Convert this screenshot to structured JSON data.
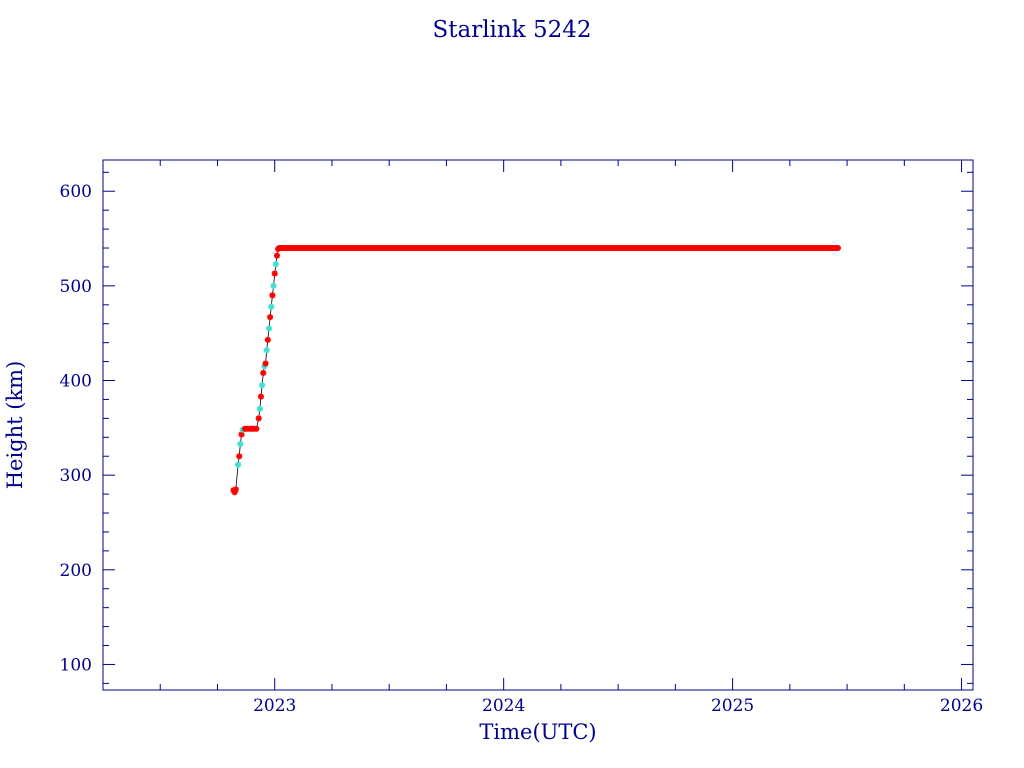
{
  "chart_data": {
    "type": "scatter",
    "title": "Starlink 5242",
    "xlabel": "Time(UTC)",
    "ylabel": "Height (km)",
    "xlim": [
      2022.25,
      2026.05
    ],
    "ylim": [
      73,
      633
    ],
    "x_ticks": [
      2023,
      2024,
      2025,
      2026
    ],
    "y_ticks": [
      100,
      200,
      300,
      400,
      500,
      600
    ],
    "grid": false,
    "colors": {
      "axes": "#00008b",
      "marker_primary": "#ff0000",
      "marker_secondary": "#40e0d0",
      "line": "#000000"
    },
    "series": [
      {
        "points": [
          [
            2022.82,
            284
          ],
          [
            2022.825,
            282
          ],
          [
            2022.83,
            285
          ],
          [
            2022.84,
            311
          ],
          [
            2022.845,
            320
          ],
          [
            2022.85,
            333
          ],
          [
            2022.855,
            343
          ],
          [
            2022.86,
            348
          ],
          [
            2022.87,
            349
          ],
          [
            2022.88,
            349
          ],
          [
            2022.89,
            349
          ],
          [
            2022.9,
            349
          ],
          [
            2022.91,
            349
          ],
          [
            2022.92,
            349
          ],
          [
            2022.93,
            360
          ],
          [
            2022.935,
            370
          ],
          [
            2022.94,
            383
          ],
          [
            2022.945,
            395
          ],
          [
            2022.95,
            408
          ],
          [
            2022.955,
            415
          ],
          [
            2022.96,
            418
          ],
          [
            2022.965,
            432
          ],
          [
            2022.97,
            443
          ],
          [
            2022.975,
            455
          ],
          [
            2022.98,
            467
          ],
          [
            2022.985,
            478
          ],
          [
            2022.99,
            490
          ],
          [
            2022.995,
            500
          ],
          [
            2023.0,
            513
          ],
          [
            2023.005,
            523
          ],
          [
            2023.01,
            532
          ],
          [
            2023.015,
            539
          ],
          [
            2023.02,
            540
          ],
          [
            2023.1,
            540
          ],
          [
            2023.2,
            540
          ],
          [
            2023.3,
            540
          ],
          [
            2023.4,
            540
          ],
          [
            2023.5,
            540
          ],
          [
            2023.6,
            540
          ],
          [
            2023.7,
            540
          ],
          [
            2023.8,
            540
          ],
          [
            2023.9,
            540
          ],
          [
            2024.0,
            540
          ],
          [
            2024.1,
            540
          ],
          [
            2024.2,
            540
          ],
          [
            2024.3,
            540
          ],
          [
            2024.4,
            540
          ],
          [
            2024.5,
            540
          ],
          [
            2024.6,
            540
          ],
          [
            2024.7,
            540
          ],
          [
            2024.8,
            540
          ],
          [
            2024.9,
            540
          ],
          [
            2025.0,
            540
          ],
          [
            2025.1,
            540
          ],
          [
            2025.2,
            540
          ],
          [
            2025.3,
            540
          ],
          [
            2025.4,
            540
          ],
          [
            2025.46,
            540
          ]
        ]
      }
    ]
  }
}
